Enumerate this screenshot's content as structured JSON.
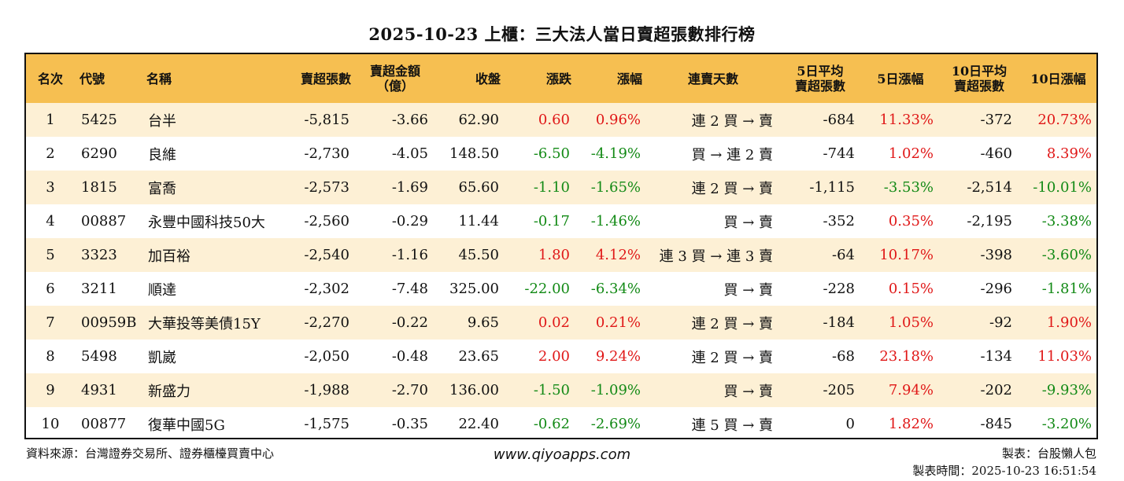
{
  "title": "2025-10-23 上櫃：三大法人當日賣超張數排行榜",
  "headers": {
    "rank": "名次",
    "code": "代號",
    "name": "名稱",
    "sell_shares": "賣超張數",
    "sell_amount_1": "賣超金額",
    "sell_amount_2": "（億）",
    "close": "收盤",
    "change": "漲跌",
    "pct": "漲幅",
    "days": "連賣天數",
    "avg5_1": "5日平均",
    "avg5_2": "賣超張數",
    "pct5": "5日漲幅",
    "avg10_1": "10日平均",
    "avg10_2": "賣超張數",
    "pct10": "10日漲幅"
  },
  "rows": [
    {
      "rank": "1",
      "code": "5425",
      "name": "台半",
      "sell": "-5,815",
      "amount": "-3.66",
      "close": "62.90",
      "change": "0.60",
      "change_dir": "up",
      "pct": "0.96%",
      "pct_dir": "up",
      "days": "連 2 買 → 賣",
      "avg5": "-684",
      "pct5": "11.33%",
      "pct5_dir": "up",
      "avg10": "-372",
      "pct10": "20.73%",
      "pct10_dir": "up"
    },
    {
      "rank": "2",
      "code": "6290",
      "name": "良維",
      "sell": "-2,730",
      "amount": "-4.05",
      "close": "148.50",
      "change": "-6.50",
      "change_dir": "down",
      "pct": "-4.19%",
      "pct_dir": "down",
      "days": "買 → 連 2 賣",
      "avg5": "-744",
      "pct5": "1.02%",
      "pct5_dir": "up",
      "avg10": "-460",
      "pct10": "8.39%",
      "pct10_dir": "up"
    },
    {
      "rank": "3",
      "code": "1815",
      "name": "富喬",
      "sell": "-2,573",
      "amount": "-1.69",
      "close": "65.60",
      "change": "-1.10",
      "change_dir": "down",
      "pct": "-1.65%",
      "pct_dir": "down",
      "days": "連 2 買 → 賣",
      "avg5": "-1,115",
      "pct5": "-3.53%",
      "pct5_dir": "down",
      "avg10": "-2,514",
      "pct10": "-10.01%",
      "pct10_dir": "down"
    },
    {
      "rank": "4",
      "code": "00887",
      "name": "永豐中國科技50大",
      "sell": "-2,560",
      "amount": "-0.29",
      "close": "11.44",
      "change": "-0.17",
      "change_dir": "down",
      "pct": "-1.46%",
      "pct_dir": "down",
      "days": "買 → 賣",
      "avg5": "-352",
      "pct5": "0.35%",
      "pct5_dir": "up",
      "avg10": "-2,195",
      "pct10": "-3.38%",
      "pct10_dir": "down"
    },
    {
      "rank": "5",
      "code": "3323",
      "name": "加百裕",
      "sell": "-2,540",
      "amount": "-1.16",
      "close": "45.50",
      "change": "1.80",
      "change_dir": "up",
      "pct": "4.12%",
      "pct_dir": "up",
      "days": "連 3 買 → 連 3 賣",
      "avg5": "-64",
      "pct5": "10.17%",
      "pct5_dir": "up",
      "avg10": "-398",
      "pct10": "-3.60%",
      "pct10_dir": "down"
    },
    {
      "rank": "6",
      "code": "3211",
      "name": "順達",
      "sell": "-2,302",
      "amount": "-7.48",
      "close": "325.00",
      "change": "-22.00",
      "change_dir": "down",
      "pct": "-6.34%",
      "pct_dir": "down",
      "days": "買 → 賣",
      "avg5": "-228",
      "pct5": "0.15%",
      "pct5_dir": "up",
      "avg10": "-296",
      "pct10": "-1.81%",
      "pct10_dir": "down"
    },
    {
      "rank": "7",
      "code": "00959B",
      "name": "大華投等美債15Y",
      "sell": "-2,270",
      "amount": "-0.22",
      "close": "9.65",
      "change": "0.02",
      "change_dir": "up",
      "pct": "0.21%",
      "pct_dir": "up",
      "days": "連 2 買 → 賣",
      "avg5": "-184",
      "pct5": "1.05%",
      "pct5_dir": "up",
      "avg10": "-92",
      "pct10": "1.90%",
      "pct10_dir": "up"
    },
    {
      "rank": "8",
      "code": "5498",
      "name": "凱崴",
      "sell": "-2,050",
      "amount": "-0.48",
      "close": "23.65",
      "change": "2.00",
      "change_dir": "up",
      "pct": "9.24%",
      "pct_dir": "up",
      "days": "連 2 買 → 賣",
      "avg5": "-68",
      "pct5": "23.18%",
      "pct5_dir": "up",
      "avg10": "-134",
      "pct10": "11.03%",
      "pct10_dir": "up"
    },
    {
      "rank": "9",
      "code": "4931",
      "name": "新盛力",
      "sell": "-1,988",
      "amount": "-2.70",
      "close": "136.00",
      "change": "-1.50",
      "change_dir": "down",
      "pct": "-1.09%",
      "pct_dir": "down",
      "days": "買 → 賣",
      "avg5": "-205",
      "pct5": "7.94%",
      "pct5_dir": "up",
      "avg10": "-202",
      "pct10": "-9.93%",
      "pct10_dir": "down"
    },
    {
      "rank": "10",
      "code": "00877",
      "name": "復華中國5G",
      "sell": "-1,575",
      "amount": "-0.35",
      "close": "22.40",
      "change": "-0.62",
      "change_dir": "down",
      "pct": "-2.69%",
      "pct_dir": "down",
      "days": "連 5 買 → 賣",
      "avg5": "0",
      "pct5": "1.82%",
      "pct5_dir": "up",
      "avg10": "-845",
      "pct10": "-3.20%",
      "pct10_dir": "down"
    }
  ],
  "footer": {
    "source": "資料來源：台灣證券交易所、證券櫃檯買賣中心",
    "website": "www.qiyoapps.com",
    "maker": "製表：台股懶人包",
    "time": "製表時間：2025-10-23 16:51:54"
  },
  "colors": {
    "header_bg": "#f6bf51",
    "stripe_bg": "#fdf0d5",
    "up": "#e01818",
    "down": "#138a16"
  }
}
